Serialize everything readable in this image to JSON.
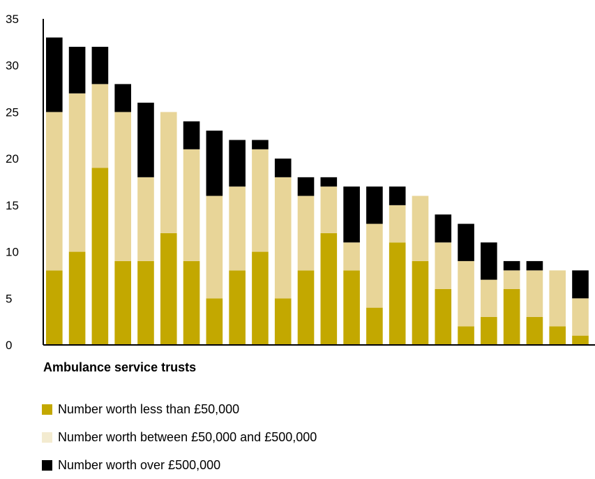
{
  "chart_data": {
    "type": "bar",
    "stacked": true,
    "xlabel": "Ambulance service trusts",
    "ylabel": "",
    "ylim": [
      0,
      35
    ],
    "yticks": [
      0,
      5,
      10,
      15,
      20,
      25,
      30,
      35
    ],
    "grid": false,
    "series": [
      {
        "name": "Number worth less than £50,000",
        "color": "#c3a800",
        "values": [
          8,
          10,
          19,
          9,
          9,
          12,
          9,
          5,
          8,
          10,
          5,
          8,
          12,
          8,
          4,
          11,
          9,
          6,
          2,
          3,
          6,
          3,
          2,
          1
        ]
      },
      {
        "name": "Number worth between £50,000 and £500,000",
        "color": "#e8d598",
        "values": [
          17,
          17,
          9,
          16,
          9,
          13,
          12,
          11,
          9,
          11,
          13,
          8,
          5,
          3,
          9,
          4,
          7,
          5,
          7,
          4,
          2,
          5,
          6,
          4
        ]
      },
      {
        "name": "Number worth over £500,000",
        "color": "#000000",
        "values": [
          8,
          5,
          4,
          3,
          8,
          0,
          3,
          7,
          5,
          1,
          2,
          2,
          1,
          6,
          4,
          2,
          0,
          3,
          4,
          4,
          1,
          1,
          0,
          3
        ]
      }
    ]
  },
  "legend": {
    "items": [
      {
        "label": "Number worth less than £50,000",
        "color": "#c3a800"
      },
      {
        "label": "Number worth between £50,000 and £500,000",
        "color": "#f3ebd0"
      },
      {
        "label": "Number worth over £500,000",
        "color": "#000000"
      }
    ]
  }
}
